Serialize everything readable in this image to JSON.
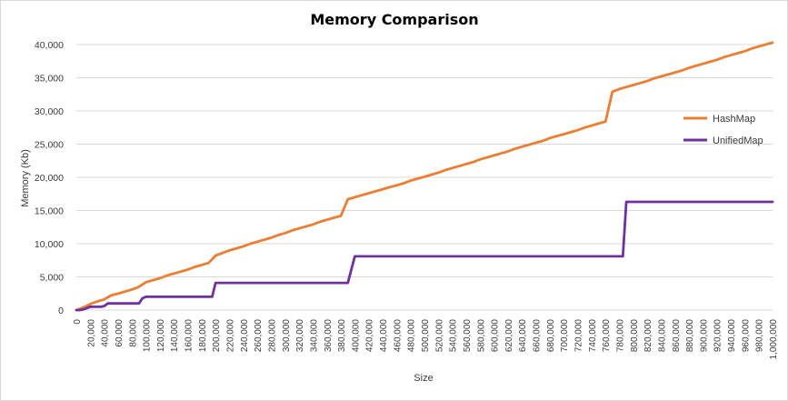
{
  "chart_data": {
    "type": "line",
    "title": "Memory Comparison",
    "xlabel": "Size",
    "ylabel": "Memory (Kb)",
    "xlim": [
      0,
      1000000
    ],
    "ylim": [
      0,
      40000
    ],
    "grid": "horizontal",
    "legend_position": "right",
    "y_ticks": [
      "0",
      "5,000",
      "10,000",
      "15,000",
      "20,000",
      "25,000",
      "30,000",
      "35,000",
      "40,000"
    ],
    "x_ticks": [
      "0",
      "20,000",
      "40,000",
      "60,000",
      "80,000",
      "100,000",
      "120,000",
      "140,000",
      "160,000",
      "180,000",
      "200,000",
      "220,000",
      "240,000",
      "260,000",
      "280,000",
      "300,000",
      "320,000",
      "340,000",
      "360,000",
      "380,000",
      "400,000",
      "420,000",
      "440,000",
      "460,000",
      "480,000",
      "500,000",
      "520,000",
      "540,000",
      "560,000",
      "580,000",
      "600,000",
      "620,000",
      "640,000",
      "660,000",
      "680,000",
      "700,000",
      "720,000",
      "740,000",
      "760,000",
      "780,000",
      "800,000",
      "820,000",
      "840,000",
      "860,000",
      "880,000",
      "900,000",
      "920,000",
      "940,000",
      "960,000",
      "980,000",
      "1,000,000"
    ],
    "series": [
      {
        "name": "HashMap",
        "color": "#ED7D31",
        "x": [
          0,
          10000,
          20000,
          30000,
          40000,
          50000,
          60000,
          70000,
          80000,
          90000,
          100000,
          110000,
          120000,
          130000,
          140000,
          150000,
          160000,
          170000,
          180000,
          190000,
          200000,
          210000,
          220000,
          230000,
          240000,
          250000,
          260000,
          270000,
          280000,
          290000,
          300000,
          310000,
          320000,
          330000,
          340000,
          350000,
          360000,
          370000,
          380000,
          390000,
          400000,
          410000,
          420000,
          430000,
          440000,
          450000,
          460000,
          470000,
          480000,
          490000,
          500000,
          510000,
          520000,
          530000,
          540000,
          550000,
          560000,
          570000,
          580000,
          590000,
          600000,
          610000,
          620000,
          630000,
          640000,
          650000,
          660000,
          670000,
          680000,
          690000,
          700000,
          710000,
          720000,
          730000,
          740000,
          750000,
          760000,
          770000,
          780000,
          790000,
          800000,
          810000,
          820000,
          830000,
          840000,
          850000,
          860000,
          870000,
          880000,
          890000,
          900000,
          910000,
          920000,
          930000,
          940000,
          950000,
          960000,
          970000,
          980000,
          990000,
          1000000
        ],
        "values": [
          0,
          400,
          900,
          1300,
          1600,
          2200,
          2500,
          2800,
          3100,
          3500,
          4200,
          4500,
          4800,
          5200,
          5500,
          5800,
          6100,
          6500,
          6800,
          7100,
          8200,
          8600,
          9000,
          9300,
          9600,
          10000,
          10300,
          10600,
          10900,
          11300,
          11600,
          12000,
          12300,
          12600,
          12900,
          13300,
          13600,
          13900,
          14200,
          16700,
          17000,
          17300,
          17600,
          17900,
          18200,
          18500,
          18800,
          19100,
          19500,
          19800,
          20100,
          20400,
          20700,
          21100,
          21400,
          21700,
          22000,
          22300,
          22700,
          23000,
          23300,
          23600,
          23900,
          24300,
          24600,
          24900,
          25200,
          25500,
          25900,
          26200,
          26500,
          26800,
          27100,
          27500,
          27800,
          28100,
          28400,
          32900,
          33300,
          33600,
          33900,
          34200,
          34500,
          34900,
          35200,
          35500,
          35800,
          36100,
          36500,
          36800,
          37100,
          37400,
          37700,
          38100,
          38400,
          38700,
          39000,
          39400,
          39700,
          40000,
          40300
        ]
      },
      {
        "name": "UnifiedMap",
        "color": "#7030A0",
        "x": [
          0,
          5000,
          10000,
          20000,
          25000,
          35000,
          40000,
          45000,
          50000,
          90000,
          95000,
          100000,
          195000,
          200000,
          390000,
          400000,
          785000,
          790000,
          1000000
        ],
        "values": [
          0,
          0,
          100,
          500,
          500,
          500,
          600,
          1000,
          1000,
          1000,
          1800,
          2000,
          2000,
          4100,
          4100,
          8100,
          8100,
          16300,
          16300
        ]
      }
    ]
  }
}
